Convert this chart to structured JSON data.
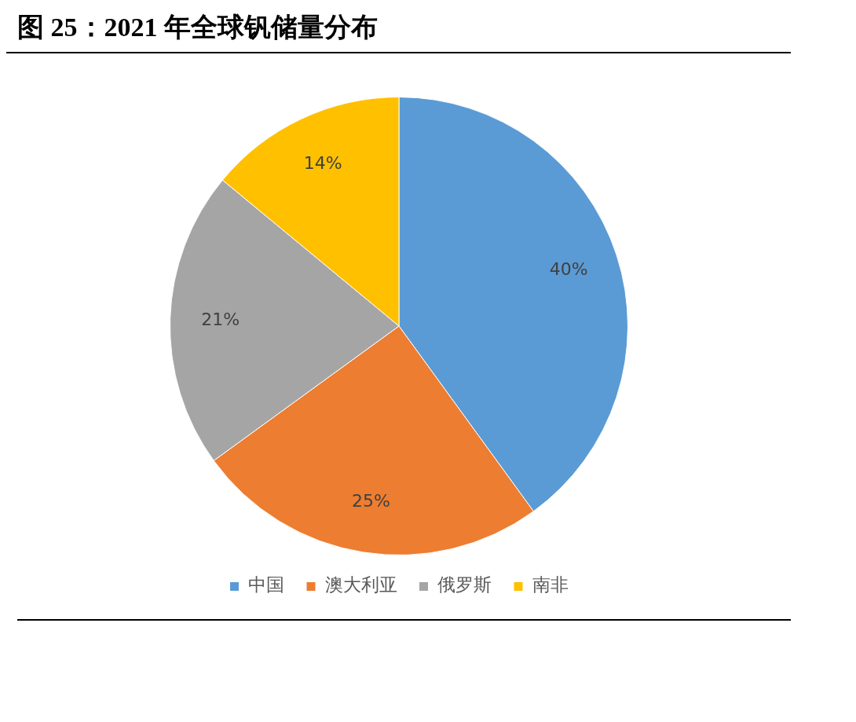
{
  "chart_data": {
    "type": "pie",
    "title": "图 25：2021 年全球钒储量分布",
    "categories": [
      "中国",
      "澳大利亚",
      "俄罗斯",
      "南非"
    ],
    "values": [
      40,
      25,
      21,
      14
    ],
    "colors": [
      "#5b9bd5",
      "#ed7d31",
      "#a5a5a5",
      "#ffc000"
    ],
    "value_labels": [
      "40%",
      "25%",
      "21%",
      "14%"
    ],
    "legend": "bottom"
  }
}
